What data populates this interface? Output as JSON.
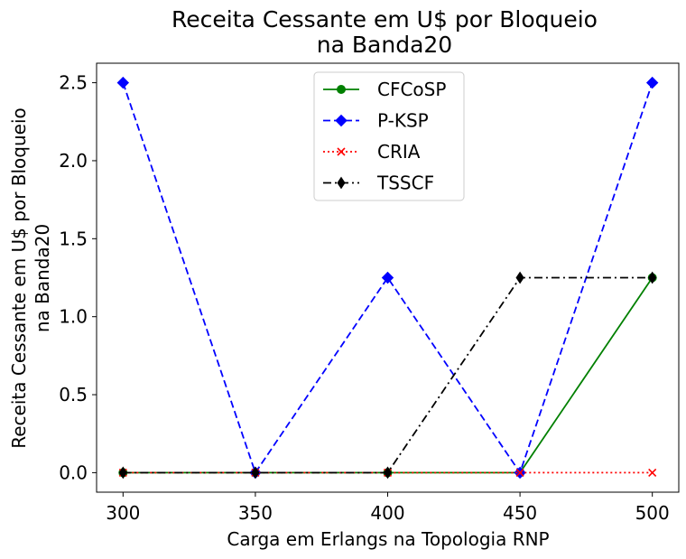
{
  "chart_data": {
    "type": "line",
    "title_line1": "Receita Cessante em U$ por Bloqueio",
    "title_line2": "na Banda20",
    "xlabel": "Carga em Erlangs na Topologia RNP",
    "ylabel_line1": "Receita Cessante em U$ por Bloqueio",
    "ylabel_line2": "na Banda20",
    "x": [
      300,
      350,
      400,
      450,
      500
    ],
    "xlim": [
      290,
      510
    ],
    "ylim": [
      -0.125,
      2.625
    ],
    "xticks": [
      "300",
      "350",
      "400",
      "450",
      "500"
    ],
    "yticks": [
      "0.0",
      "0.5",
      "1.0",
      "1.5",
      "2.0",
      "2.5"
    ],
    "legend_position": "top-center",
    "grid": false,
    "series": [
      {
        "name": "CFCoSP",
        "values": [
          0,
          0,
          0,
          0,
          1.25
        ],
        "color": "#008000",
        "dash": "solid",
        "marker": "circle"
      },
      {
        "name": "P-KSP",
        "values": [
          2.5,
          0,
          1.25,
          0,
          2.5
        ],
        "color": "#0000ff",
        "dash": "dashed",
        "marker": "diamond"
      },
      {
        "name": "CRIA",
        "values": [
          0,
          0,
          0,
          0,
          0
        ],
        "color": "#ff0000",
        "dash": "dotted",
        "marker": "x"
      },
      {
        "name": "TSSCF",
        "values": [
          0,
          0,
          0,
          1.25,
          1.25
        ],
        "color": "#000000",
        "dash": "dashdot",
        "marker": "thin-diamond"
      }
    ]
  }
}
